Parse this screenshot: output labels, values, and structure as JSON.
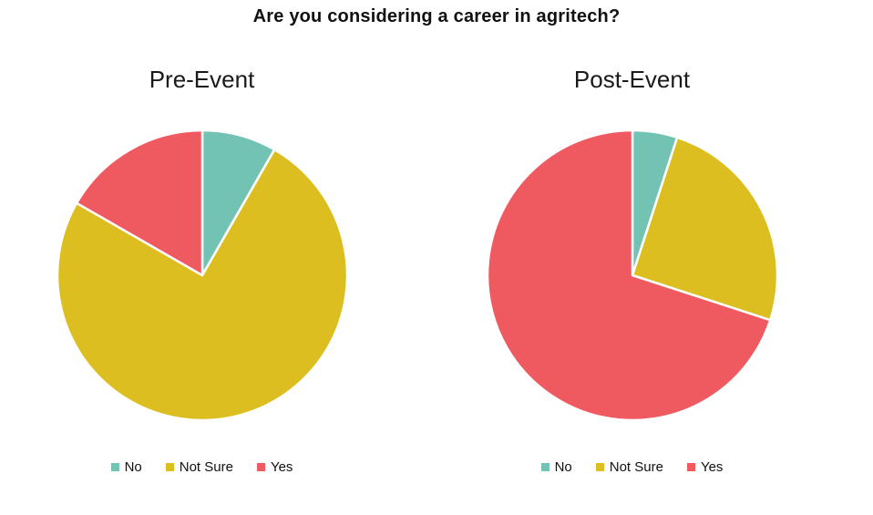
{
  "page": {
    "title": "Are you considering a career in agritech?",
    "background_color": "#ffffff",
    "title_color": "#111111"
  },
  "chart_data": [
    {
      "type": "pie",
      "title": "Pre-Event",
      "categories": [
        "No",
        "Not Sure",
        "Yes"
      ],
      "values": [
        8.3,
        75.0,
        16.7
      ],
      "colors": [
        "#72c3b4",
        "#dcbe20",
        "#ef5a61"
      ],
      "start_angle_deg": 0,
      "direction": "clockwise",
      "slice_separator_color": "#ffffff",
      "legend_position": "bottom"
    },
    {
      "type": "pie",
      "title": "Post-Event",
      "categories": [
        "No",
        "Not Sure",
        "Yes"
      ],
      "values": [
        5.0,
        25.0,
        70.0
      ],
      "colors": [
        "#72c3b4",
        "#dcbe20",
        "#ef5a61"
      ],
      "start_angle_deg": 0,
      "direction": "clockwise",
      "slice_separator_color": "#ffffff",
      "legend_position": "bottom"
    }
  ]
}
